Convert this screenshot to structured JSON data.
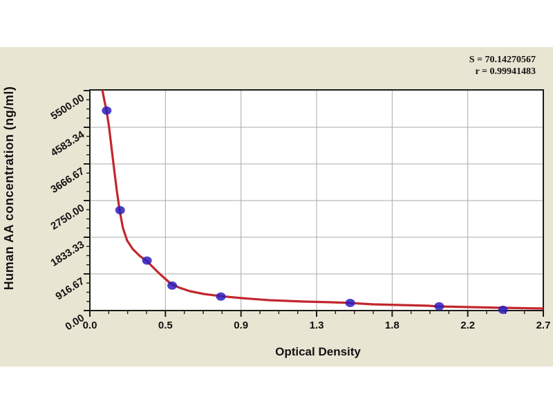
{
  "page": {
    "background": "#ffffff",
    "panel_color": "#e9e5d3"
  },
  "stats": {
    "line1": "S = 70.14270567",
    "line2": "r = 0.99941483"
  },
  "chart_data": {
    "type": "scatter",
    "title": "",
    "xlabel": "Optical Density",
    "ylabel": "Human AA concentration (ng/ml)",
    "xlim": [
      0,
      2.7
    ],
    "ylim": [
      0,
      5500
    ],
    "grid": true,
    "legend": "none",
    "x_ticks": [
      {
        "v": 0.0,
        "label": "0.0"
      },
      {
        "v": 0.45,
        "label": "0.5"
      },
      {
        "v": 0.9,
        "label": "0.9"
      },
      {
        "v": 1.35,
        "label": "1.3"
      },
      {
        "v": 1.8,
        "label": "1.8"
      },
      {
        "v": 2.25,
        "label": "2.2"
      },
      {
        "v": 2.7,
        "label": "2.7"
      }
    ],
    "y_ticks": [
      {
        "v": 0,
        "label": "0.00"
      },
      {
        "v": 916.67,
        "label": "916.67"
      },
      {
        "v": 1833.33,
        "label": "1833.33"
      },
      {
        "v": 2750.0,
        "label": "2750.00"
      },
      {
        "v": 3666.67,
        "label": "3666.67"
      },
      {
        "v": 4583.34,
        "label": "4583.34"
      },
      {
        "v": 5500.0,
        "label": "5500.00"
      }
    ],
    "minor_divisions_per_major": 4,
    "points": [
      [
        0.1,
        5000
      ],
      [
        0.18,
        2510
      ],
      [
        0.34,
        1250
      ],
      [
        0.49,
        625
      ],
      [
        0.78,
        350
      ],
      [
        1.55,
        190
      ],
      [
        2.08,
        105
      ],
      [
        2.46,
        20
      ]
    ],
    "curve": [
      [
        0.074,
        5520
      ],
      [
        0.086,
        5260
      ],
      [
        0.099,
        5000
      ],
      [
        0.115,
        4570
      ],
      [
        0.132,
        3960
      ],
      [
        0.148,
        3410
      ],
      [
        0.16,
        3010
      ],
      [
        0.177,
        2510
      ],
      [
        0.197,
        2060
      ],
      [
        0.222,
        1750
      ],
      [
        0.255,
        1540
      ],
      [
        0.296,
        1370
      ],
      [
        0.341,
        1230
      ],
      [
        0.411,
        935
      ],
      [
        0.481,
        675
      ],
      [
        0.534,
        570
      ],
      [
        0.596,
        485
      ],
      [
        0.678,
        415
      ],
      [
        0.785,
        358
      ],
      [
        0.904,
        311
      ],
      [
        1.068,
        260
      ],
      [
        1.274,
        225
      ],
      [
        1.438,
        208
      ],
      [
        1.545,
        190
      ],
      [
        1.685,
        156
      ],
      [
        1.849,
        138
      ],
      [
        2.014,
        121
      ],
      [
        2.075,
        104
      ],
      [
        2.26,
        87
      ],
      [
        2.457,
        69
      ],
      [
        2.7,
        52
      ]
    ],
    "colors": {
      "curve": "#c1272d",
      "point": "#2b1fbe",
      "grid": "#a9a9a9",
      "axis": "#1a1a1a",
      "plot_background": "#ffffff",
      "text": "#111111"
    }
  }
}
